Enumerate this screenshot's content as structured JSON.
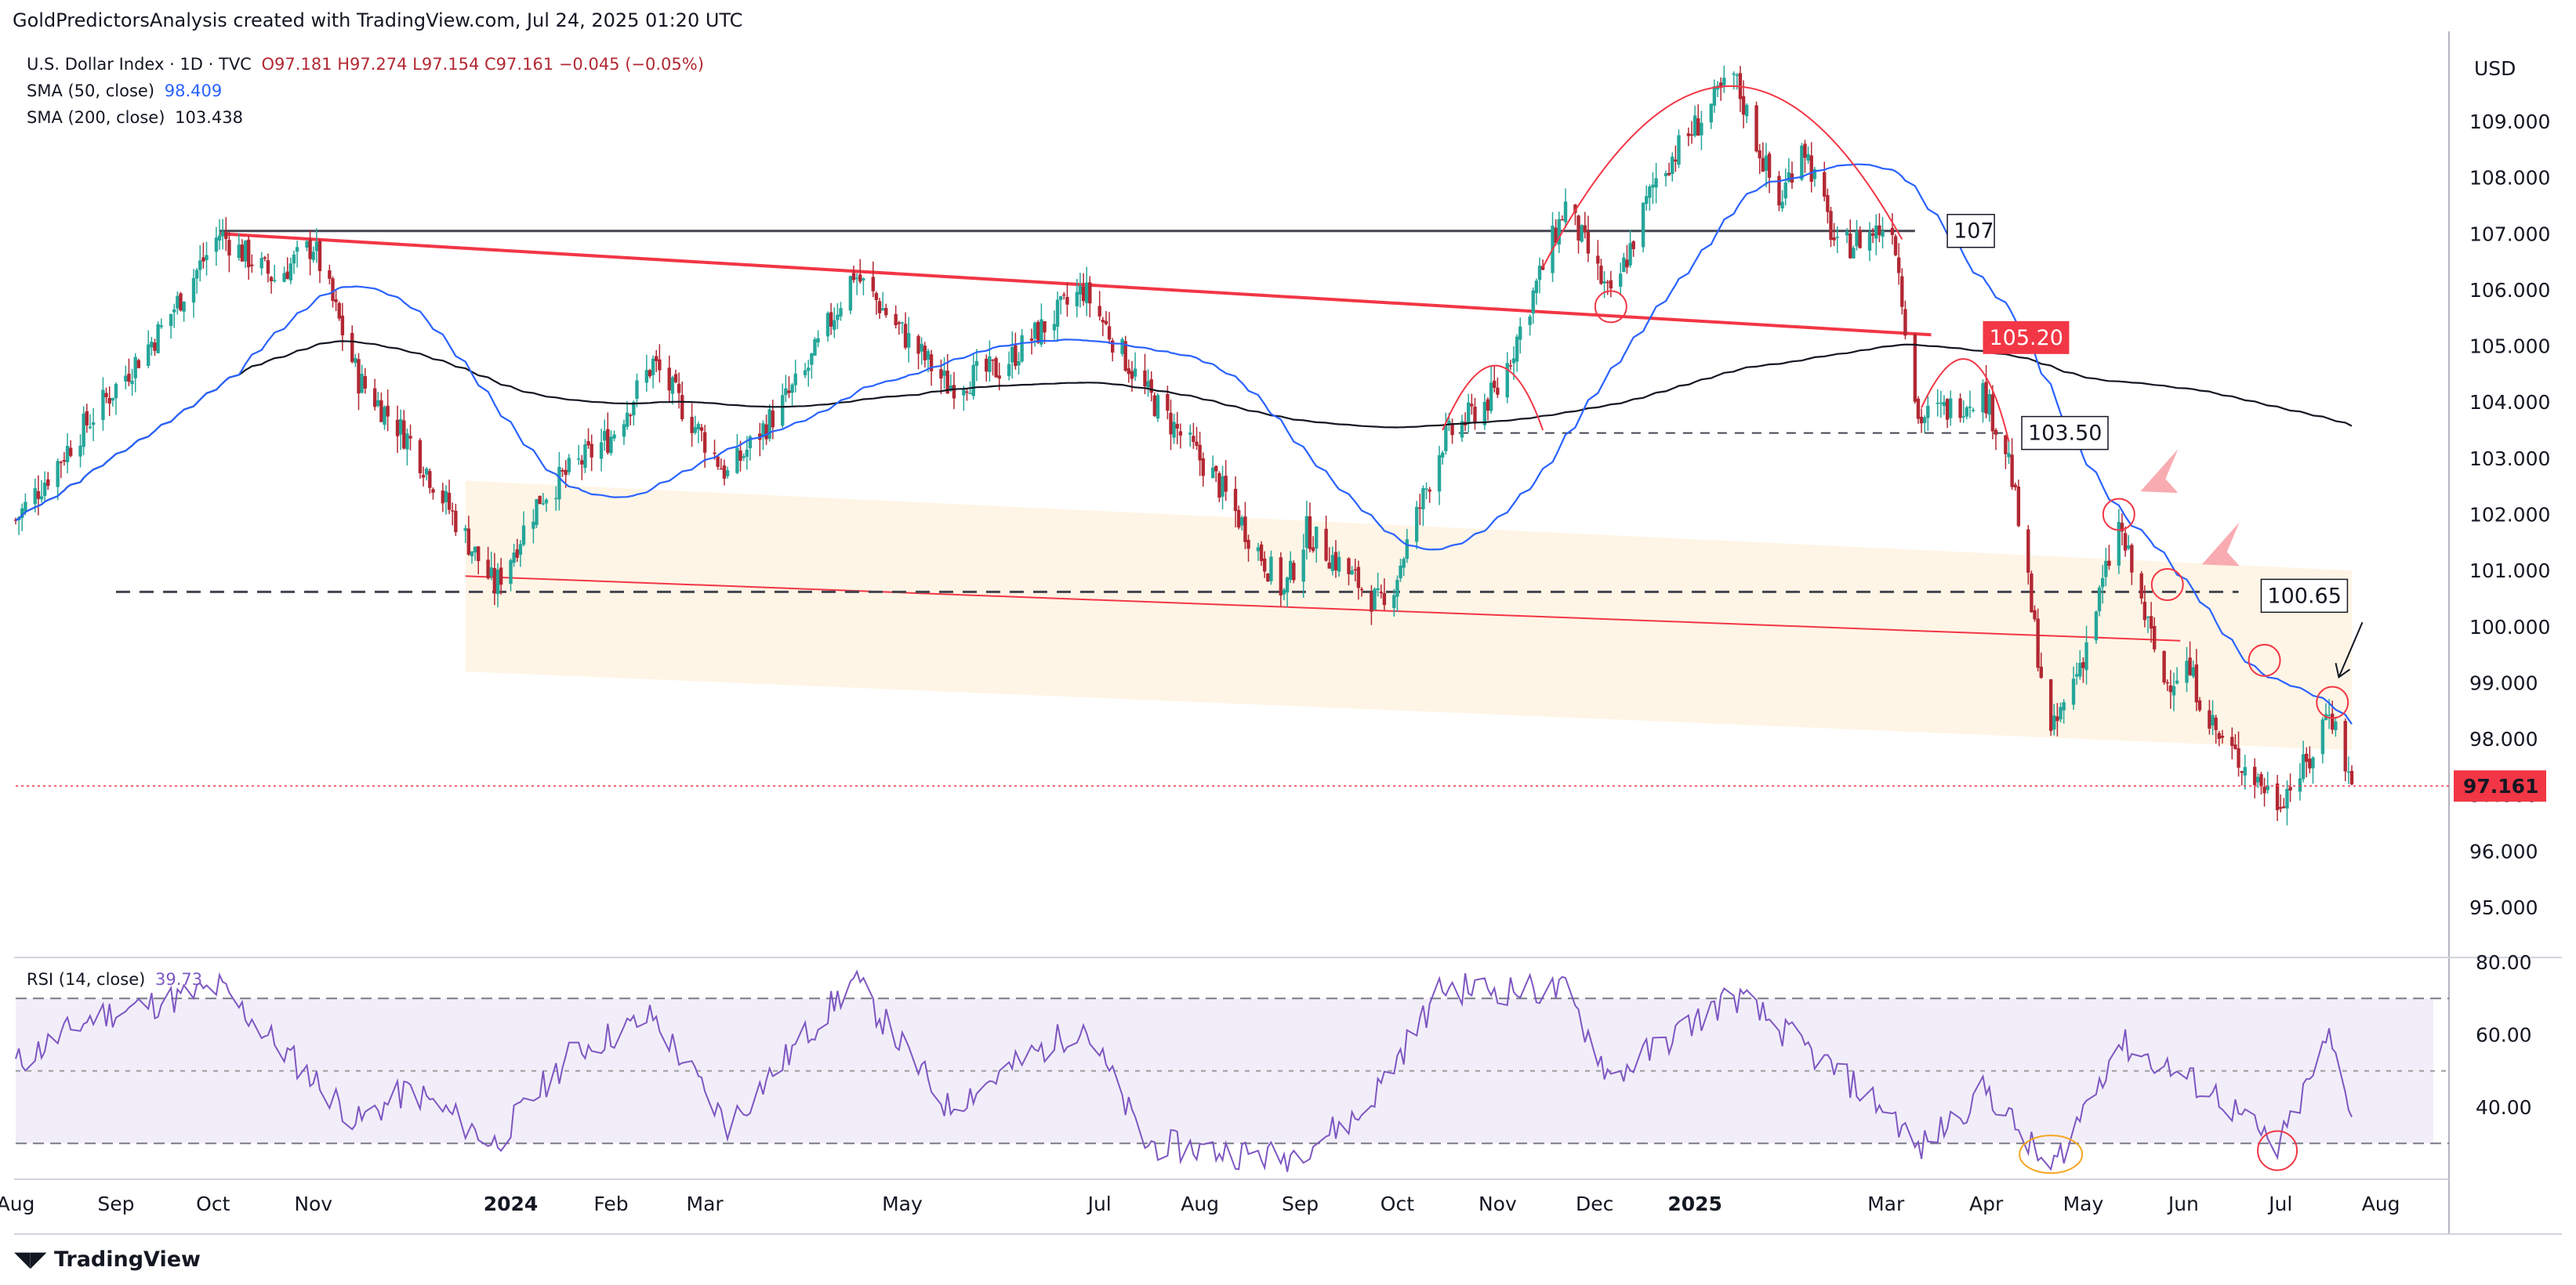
{
  "caption": "GoldPredictorsAnalysis created with TradingView.com, Jul 24, 2025 01:20 UTC",
  "legend": {
    "symbol": "U.S. Dollar Index · 1D · TVC",
    "ohlc": "O97.181  H97.274  L97.154  C97.161  −0.045 (−0.05%)",
    "sma50_label": "SMA (50, close)",
    "sma50_value": "98.409",
    "sma200_label": "SMA (200, close)",
    "sma200_value": "103.438",
    "rsi_label": "RSI (14, close)",
    "rsi_value": "39.73"
  },
  "currency": "USD",
  "last_price": "97.161",
  "footer": "TradingView",
  "colors": {
    "up": "#26a69a",
    "down": "#b22833",
    "sma50": "#2962ff",
    "sma200": "#131722",
    "rsi": "#7e57c2",
    "resistance": "#f23645",
    "channel_fill": "#fff3e0"
  },
  "annotations": {
    "level_107": "107",
    "level_105_20": "105.20",
    "level_103_50": "103.50",
    "level_100_65": "100.65"
  },
  "chart_data": [
    {
      "type": "candlestick",
      "title": "U.S. Dollar Index · 1D · TVC",
      "x_ticks": [
        "Aug",
        "Sep",
        "Oct",
        "Nov",
        "2024",
        "Feb",
        "Mar",
        "May",
        "Jul",
        "Aug",
        "Sep",
        "Oct",
        "Nov",
        "Dec",
        "2025",
        "Mar",
        "Apr",
        "May",
        "Jun",
        "Jul",
        "Aug"
      ],
      "y_ticks": [
        "109.000",
        "108.000",
        "107.000",
        "106.000",
        "105.000",
        "104.000",
        "103.000",
        "102.000",
        "101.000",
        "100.000",
        "99.000",
        "98.000",
        "97.000",
        "96.000",
        "95.000"
      ],
      "ylim": [
        94.0,
        110.0
      ],
      "price_anchors": [
        {
          "date": "2023-08-01",
          "close": 101.9
        },
        {
          "date": "2023-08-20",
          "close": 103.4
        },
        {
          "date": "2023-09-15",
          "close": 105.3
        },
        {
          "date": "2023-10-03",
          "close": 107.0
        },
        {
          "date": "2023-10-20",
          "close": 106.2
        },
        {
          "date": "2023-11-01",
          "close": 106.8
        },
        {
          "date": "2023-11-15",
          "close": 104.4
        },
        {
          "date": "2023-12-01",
          "close": 103.3
        },
        {
          "date": "2023-12-27",
          "close": 100.7
        },
        {
          "date": "2024-01-10",
          "close": 102.3
        },
        {
          "date": "2024-02-01",
          "close": 103.4
        },
        {
          "date": "2024-02-14",
          "close": 104.7
        },
        {
          "date": "2024-03-08",
          "close": 102.7
        },
        {
          "date": "2024-04-01",
          "close": 104.5
        },
        {
          "date": "2024-04-16",
          "close": 106.3
        },
        {
          "date": "2024-05-03",
          "close": 105.1
        },
        {
          "date": "2024-05-15",
          "close": 104.3
        },
        {
          "date": "2024-05-31",
          "close": 104.6
        },
        {
          "date": "2024-06-26",
          "close": 106.0
        },
        {
          "date": "2024-07-15",
          "close": 104.2
        },
        {
          "date": "2024-08-05",
          "close": 102.7
        },
        {
          "date": "2024-08-27",
          "close": 100.6
        },
        {
          "date": "2024-09-03",
          "close": 101.7
        },
        {
          "date": "2024-09-27",
          "close": 100.3
        },
        {
          "date": "2024-10-15",
          "close": 103.3
        },
        {
          "date": "2024-11-01",
          "close": 104.2
        },
        {
          "date": "2024-11-22",
          "close": 107.5
        },
        {
          "date": "2024-12-06",
          "close": 105.8
        },
        {
          "date": "2024-12-20",
          "close": 108.0
        },
        {
          "date": "2025-01-13",
          "close": 109.8
        },
        {
          "date": "2025-01-27",
          "close": 107.5
        },
        {
          "date": "2025-02-03",
          "close": 108.7
        },
        {
          "date": "2025-02-14",
          "close": 106.7
        },
        {
          "date": "2025-03-03",
          "close": 107.2
        },
        {
          "date": "2025-03-11",
          "close": 103.7
        },
        {
          "date": "2025-03-21",
          "close": 103.9
        },
        {
          "date": "2025-03-31",
          "close": 104.2
        },
        {
          "date": "2025-04-08",
          "close": 103.0
        },
        {
          "date": "2025-04-21",
          "close": 98.0
        },
        {
          "date": "2025-05-01",
          "close": 99.5
        },
        {
          "date": "2025-05-12",
          "close": 101.8
        },
        {
          "date": "2025-05-26",
          "close": 99.0
        },
        {
          "date": "2025-06-02",
          "close": 99.3
        },
        {
          "date": "2025-06-12",
          "close": 98.0
        },
        {
          "date": "2025-06-30",
          "close": 96.9
        },
        {
          "date": "2025-07-10",
          "close": 97.6
        },
        {
          "date": "2025-07-16",
          "close": 98.6
        },
        {
          "date": "2025-07-23",
          "close": 97.16
        }
      ],
      "series": [
        {
          "name": "SMA (50, close)",
          "last": 98.409
        },
        {
          "name": "SMA (200, close)",
          "last": 103.438
        }
      ],
      "horizontal_levels": [
        107.0,
        105.2,
        103.5,
        100.65
      ],
      "last_price": 97.161
    },
    {
      "type": "line",
      "title": "RSI (14, close)",
      "y_ticks": [
        "80.00",
        "60.00",
        "40.00"
      ],
      "ylim": [
        20,
        80
      ],
      "bands": [
        70,
        50,
        30
      ],
      "rsi_anchors": [
        {
          "date": "2023-08-01",
          "value": 52
        },
        {
          "date": "2023-08-25",
          "value": 65
        },
        {
          "date": "2023-09-20",
          "value": 70
        },
        {
          "date": "2023-10-03",
          "value": 73
        },
        {
          "date": "2023-10-20",
          "value": 58
        },
        {
          "date": "2023-11-15",
          "value": 36
        },
        {
          "date": "2023-12-01",
          "value": 45
        },
        {
          "date": "2023-12-27",
          "value": 30
        },
        {
          "date": "2024-01-20",
          "value": 55
        },
        {
          "date": "2024-02-14",
          "value": 65
        },
        {
          "date": "2024-03-08",
          "value": 35
        },
        {
          "date": "2024-04-16",
          "value": 75
        },
        {
          "date": "2024-05-15",
          "value": 40
        },
        {
          "date": "2024-06-26",
          "value": 63
        },
        {
          "date": "2024-07-15",
          "value": 30
        },
        {
          "date": "2024-08-27",
          "value": 26
        },
        {
          "date": "2024-09-20",
          "value": 38
        },
        {
          "date": "2024-10-15",
          "value": 73
        },
        {
          "date": "2024-11-22",
          "value": 72
        },
        {
          "date": "2024-12-06",
          "value": 48
        },
        {
          "date": "2025-01-13",
          "value": 71
        },
        {
          "date": "2025-02-03",
          "value": 57
        },
        {
          "date": "2025-03-03",
          "value": 38
        },
        {
          "date": "2025-03-11",
          "value": 28
        },
        {
          "date": "2025-04-01",
          "value": 45
        },
        {
          "date": "2025-04-21",
          "value": 22
        },
        {
          "date": "2025-05-12",
          "value": 58
        },
        {
          "date": "2025-06-12",
          "value": 43
        },
        {
          "date": "2025-06-30",
          "value": 28
        },
        {
          "date": "2025-07-16",
          "value": 59
        },
        {
          "date": "2025-07-23",
          "value": 39.73
        }
      ],
      "last": 39.73
    }
  ]
}
